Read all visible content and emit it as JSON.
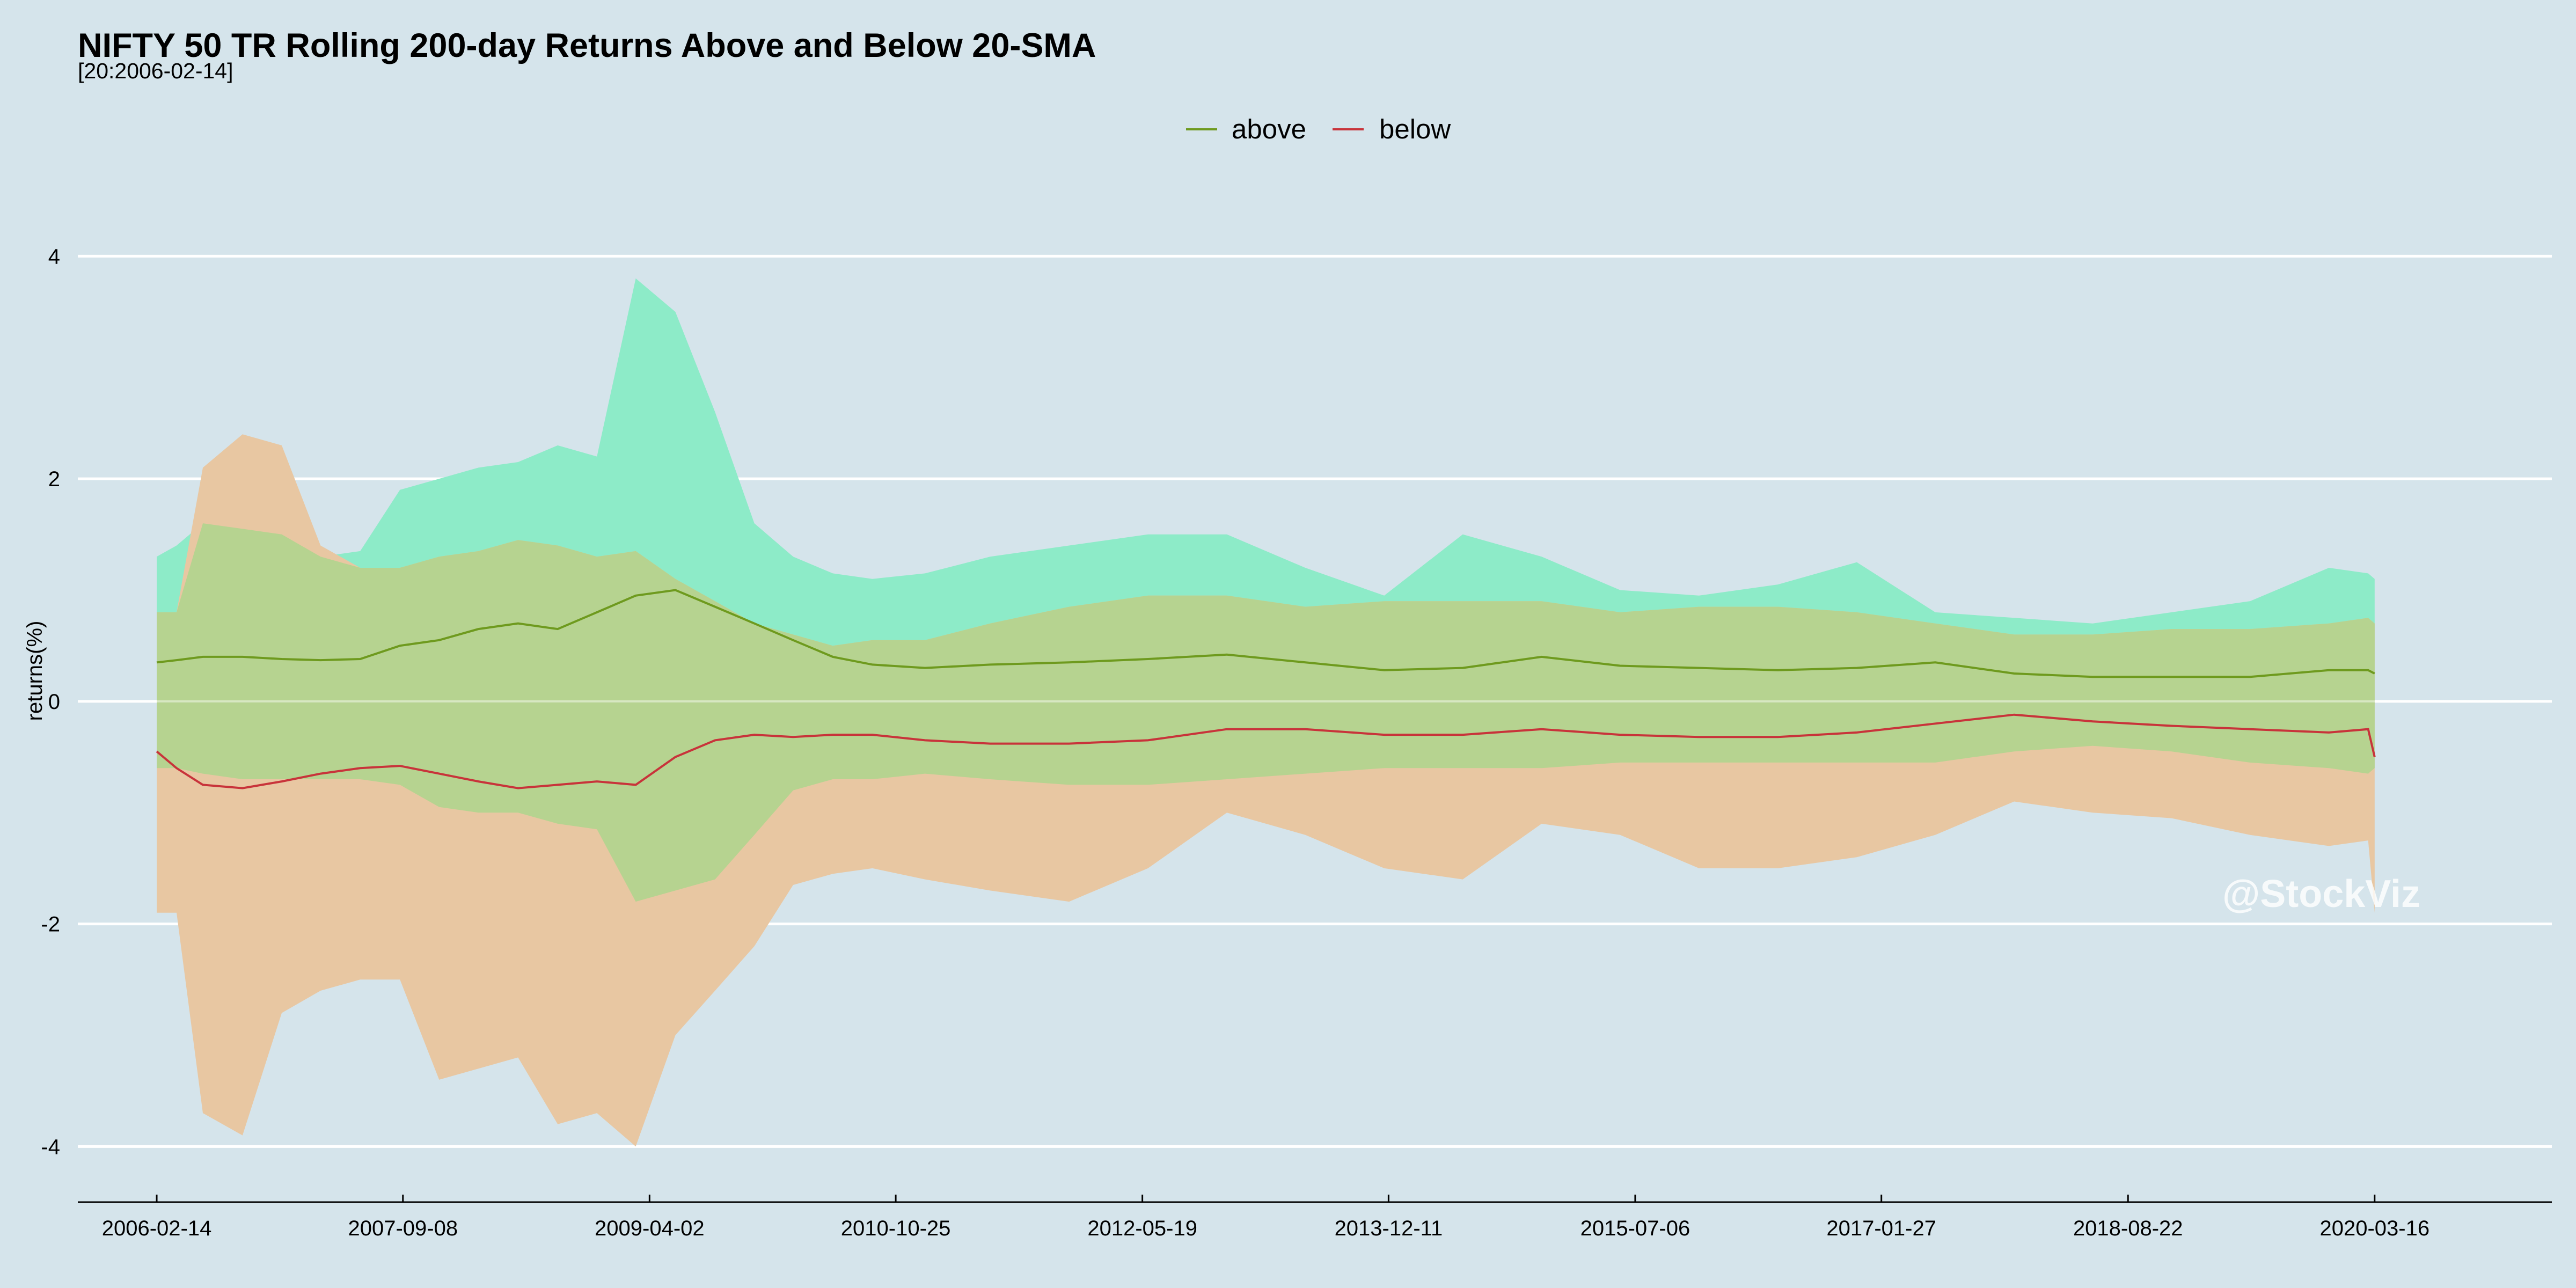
{
  "chart_data": {
    "type": "area",
    "title": "NIFTY 50 TR Rolling 200-day Returns Above and Below 20-SMA",
    "subtitle": "[20:2006-02-14]",
    "ylabel": "returns(%)",
    "xlabel": "",
    "watermark": "@StockViz",
    "legend": {
      "position": "top",
      "entries": [
        "above",
        "below"
      ]
    },
    "colors": {
      "background": "#d5e4eb",
      "above_line": "#6e9a1e",
      "below_line": "#c8333a",
      "above_band": "#8debc8",
      "below_band": "#e8c7a2",
      "overlap_band": "#b6d390",
      "grid": "#ffffff"
    },
    "ylim": [
      -4.5,
      5.0
    ],
    "yticks": [
      4,
      2,
      0,
      -2,
      -4
    ],
    "ytick_labels": [
      "4",
      "2",
      "0",
      "-2",
      "-4"
    ],
    "xlim": [
      "2005-08-15",
      "2021-05-01"
    ],
    "xticks": [
      "2006-02-14",
      "2007-09-08",
      "2009-04-02",
      "2010-10-25",
      "2012-05-19",
      "2013-12-11",
      "2015-07-06",
      "2017-01-27",
      "2018-08-22",
      "2020-03-16"
    ],
    "dates": [
      "2006-02-14",
      "2006-04-01",
      "2006-06-01",
      "2006-09-01",
      "2006-12-01",
      "2007-03-01",
      "2007-06-01",
      "2007-09-01",
      "2007-12-01",
      "2008-03-01",
      "2008-06-01",
      "2008-09-01",
      "2008-12-01",
      "2009-03-01",
      "2009-06-01",
      "2009-09-01",
      "2009-12-01",
      "2010-03-01",
      "2010-06-01",
      "2010-09-01",
      "2011-01-01",
      "2011-06-01",
      "2011-12-01",
      "2012-06-01",
      "2012-12-01",
      "2013-06-01",
      "2013-12-01",
      "2014-06-01",
      "2014-12-01",
      "2015-06-01",
      "2015-12-01",
      "2016-06-01",
      "2016-12-01",
      "2017-06-01",
      "2017-12-01",
      "2018-06-01",
      "2018-12-01",
      "2019-06-01",
      "2019-12-01",
      "2020-03-01",
      "2020-03-16"
    ],
    "series": [
      {
        "name": "above",
        "mean": [
          0.35,
          0.37,
          0.4,
          0.4,
          0.38,
          0.37,
          0.38,
          0.5,
          0.55,
          0.65,
          0.7,
          0.65,
          0.8,
          0.95,
          1.0,
          0.85,
          0.7,
          0.55,
          0.4,
          0.33,
          0.3,
          0.33,
          0.35,
          0.38,
          0.42,
          0.35,
          0.28,
          0.3,
          0.4,
          0.32,
          0.3,
          0.28,
          0.3,
          0.35,
          0.25,
          0.22,
          0.22,
          0.22,
          0.28,
          0.28,
          0.25
        ],
        "upper": [
          1.3,
          1.4,
          1.6,
          1.55,
          1.5,
          1.3,
          1.35,
          1.9,
          2.0,
          2.1,
          2.15,
          2.3,
          2.2,
          3.8,
          3.5,
          2.6,
          1.6,
          1.3,
          1.15,
          1.1,
          1.15,
          1.3,
          1.4,
          1.5,
          1.5,
          1.2,
          0.95,
          1.5,
          1.3,
          1.0,
          0.95,
          1.05,
          1.25,
          0.8,
          0.75,
          0.7,
          0.8,
          0.9,
          1.2,
          1.15,
          1.1
        ],
        "lower": [
          -0.6,
          -0.6,
          -0.65,
          -0.7,
          -0.7,
          -0.7,
          -0.7,
          -0.75,
          -0.95,
          -1.0,
          -1.0,
          -1.1,
          -1.15,
          -1.8,
          -1.7,
          -1.6,
          -1.2,
          -0.8,
          -0.7,
          -0.7,
          -0.65,
          -0.7,
          -0.75,
          -0.75,
          -0.7,
          -0.65,
          -0.6,
          -0.6,
          -0.6,
          -0.55,
          -0.55,
          -0.55,
          -0.55,
          -0.55,
          -0.45,
          -0.4,
          -0.45,
          -0.55,
          -0.6,
          -0.65,
          -0.6
        ]
      },
      {
        "name": "below",
        "mean": [
          -0.45,
          -0.6,
          -0.75,
          -0.78,
          -0.72,
          -0.65,
          -0.6,
          -0.58,
          -0.65,
          -0.72,
          -0.78,
          -0.75,
          -0.72,
          -0.75,
          -0.5,
          -0.35,
          -0.3,
          -0.32,
          -0.3,
          -0.3,
          -0.35,
          -0.38,
          -0.38,
          -0.35,
          -0.25,
          -0.25,
          -0.3,
          -0.3,
          -0.25,
          -0.3,
          -0.32,
          -0.32,
          -0.28,
          -0.2,
          -0.12,
          -0.18,
          -0.22,
          -0.25,
          -0.28,
          -0.25,
          -0.5
        ],
        "upper": [
          0.8,
          0.8,
          2.1,
          2.4,
          2.3,
          1.4,
          1.2,
          1.2,
          1.3,
          1.35,
          1.45,
          1.4,
          1.3,
          1.35,
          1.1,
          0.9,
          0.7,
          0.6,
          0.5,
          0.55,
          0.55,
          0.7,
          0.85,
          0.95,
          0.95,
          0.85,
          0.9,
          0.9,
          0.9,
          0.8,
          0.85,
          0.85,
          0.8,
          0.7,
          0.6,
          0.6,
          0.65,
          0.65,
          0.7,
          0.75,
          0.7
        ],
        "lower": [
          -1.9,
          -1.9,
          -3.7,
          -3.9,
          -2.8,
          -2.6,
          -2.5,
          -2.5,
          -3.4,
          -3.3,
          -3.2,
          -3.8,
          -3.7,
          -4.0,
          -3.0,
          -2.6,
          -2.2,
          -1.65,
          -1.55,
          -1.5,
          -1.6,
          -1.7,
          -1.8,
          -1.5,
          -1.0,
          -1.2,
          -1.5,
          -1.6,
          -1.1,
          -1.2,
          -1.5,
          -1.5,
          -1.4,
          -1.2,
          -0.9,
          -1.0,
          -1.05,
          -1.2,
          -1.3,
          -1.25,
          -1.9
        ]
      }
    ]
  }
}
